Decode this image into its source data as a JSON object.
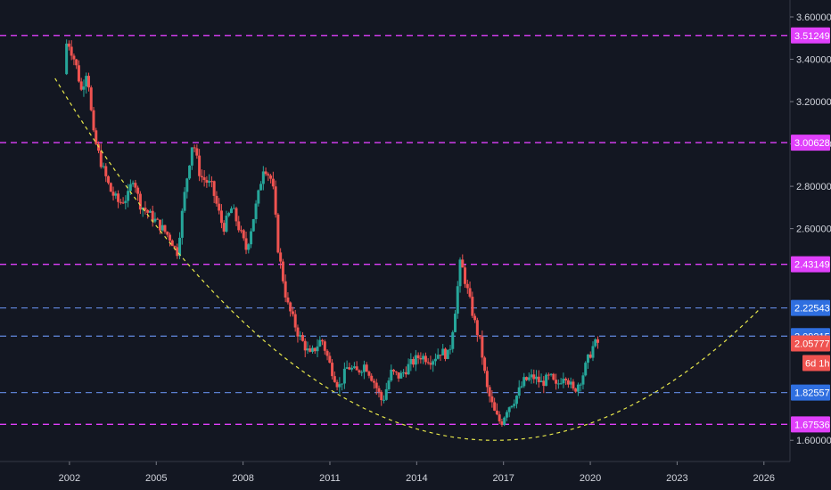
{
  "chart_data": {
    "type": "candlestick",
    "ylim": [
      1.5,
      3.68
    ],
    "xlim": [
      1999.6,
      2026.9
    ],
    "grid": false,
    "colors": {
      "background": "#131722",
      "up": "#26a69a",
      "down": "#ef5350",
      "magenta_line": "#e040fb",
      "blue_line": "#5b7fcf",
      "curve": "#e6e64a",
      "axis_text": "#d1d4dc"
    },
    "y_ticks": [
      "1.60000",
      "2.60000",
      "2.80000",
      "3.00000",
      "3.20000",
      "3.40000",
      "3.60000"
    ],
    "x_ticks": [
      {
        "label": "2002",
        "x": 2002
      },
      {
        "label": "2005",
        "x": 2005
      },
      {
        "label": "2008",
        "x": 2008
      },
      {
        "label": "2011",
        "x": 2011
      },
      {
        "label": "2014",
        "x": 2014
      },
      {
        "label": "2017",
        "x": 2017
      },
      {
        "label": "2020",
        "x": 2020
      },
      {
        "label": "2023",
        "x": 2023
      },
      {
        "label": "2026",
        "x": 2026
      }
    ],
    "horizontal_levels": [
      {
        "label": "3.51249",
        "value": 3.51249,
        "color": "#e040fb",
        "label_bg": "#e040fb"
      },
      {
        "label": "3.00628",
        "value": 3.00628,
        "color": "#e040fb",
        "label_bg": "#e040fb"
      },
      {
        "label": "2.43149",
        "value": 2.43149,
        "color": "#e040fb",
        "label_bg": "#e040fb"
      },
      {
        "label": "2.22543",
        "value": 2.22543,
        "color": "#5b7fcf",
        "label_bg": "#2f6fe0"
      },
      {
        "label": "2.09215",
        "value": 2.09215,
        "color": "#5b7fcf",
        "label_bg": "#2f6fe0"
      },
      {
        "label": "1.82557",
        "value": 1.82557,
        "color": "#5b7fcf",
        "label_bg": "#2f6fe0"
      },
      {
        "label": "1.67536",
        "value": 1.67536,
        "color": "#e040fb",
        "label_bg": "#e040fb"
      }
    ],
    "current_price": {
      "label": "2.05777",
      "value": 2.05777,
      "color": "#ef5350"
    },
    "countdown": {
      "label": "6d 1h",
      "color": "#ef5350"
    },
    "price_path": [
      {
        "x": 2001.9,
        "y": 3.33
      },
      {
        "x": 2002.0,
        "y": 3.5
      },
      {
        "x": 2002.3,
        "y": 3.38
      },
      {
        "x": 2002.5,
        "y": 3.25
      },
      {
        "x": 2002.7,
        "y": 3.36
      },
      {
        "x": 2002.9,
        "y": 3.05
      },
      {
        "x": 2003.2,
        "y": 2.9
      },
      {
        "x": 2003.5,
        "y": 2.78
      },
      {
        "x": 2003.8,
        "y": 2.72
      },
      {
        "x": 2004.1,
        "y": 2.75
      },
      {
        "x": 2004.3,
        "y": 2.85
      },
      {
        "x": 2004.5,
        "y": 2.72
      },
      {
        "x": 2004.9,
        "y": 2.66
      },
      {
        "x": 2005.3,
        "y": 2.6
      },
      {
        "x": 2005.6,
        "y": 2.55
      },
      {
        "x": 2005.8,
        "y": 2.48
      },
      {
        "x": 2006.1,
        "y": 2.8
      },
      {
        "x": 2006.35,
        "y": 3.02
      },
      {
        "x": 2006.6,
        "y": 2.85
      },
      {
        "x": 2007.0,
        "y": 2.8
      },
      {
        "x": 2007.4,
        "y": 2.6
      },
      {
        "x": 2007.7,
        "y": 2.7
      },
      {
        "x": 2007.9,
        "y": 2.62
      },
      {
        "x": 2008.2,
        "y": 2.5
      },
      {
        "x": 2008.6,
        "y": 2.75
      },
      {
        "x": 2008.8,
        "y": 2.9
      },
      {
        "x": 2009.1,
        "y": 2.82
      },
      {
        "x": 2009.3,
        "y": 2.5
      },
      {
        "x": 2009.6,
        "y": 2.25
      },
      {
        "x": 2010.0,
        "y": 2.1
      },
      {
        "x": 2010.4,
        "y": 2.0
      },
      {
        "x": 2010.8,
        "y": 2.08
      },
      {
        "x": 2011.1,
        "y": 1.95
      },
      {
        "x": 2011.4,
        "y": 1.85
      },
      {
        "x": 2011.7,
        "y": 1.95
      },
      {
        "x": 2012.0,
        "y": 1.92
      },
      {
        "x": 2012.3,
        "y": 1.96
      },
      {
        "x": 2012.6,
        "y": 1.88
      },
      {
        "x": 2012.9,
        "y": 1.78
      },
      {
        "x": 2013.2,
        "y": 1.92
      },
      {
        "x": 2013.5,
        "y": 1.9
      },
      {
        "x": 2013.8,
        "y": 1.95
      },
      {
        "x": 2014.2,
        "y": 2.0
      },
      {
        "x": 2014.6,
        "y": 1.98
      },
      {
        "x": 2014.9,
        "y": 2.02
      },
      {
        "x": 2015.2,
        "y": 2.0
      },
      {
        "x": 2015.4,
        "y": 2.2
      },
      {
        "x": 2015.6,
        "y": 2.45
      },
      {
        "x": 2015.85,
        "y": 2.3
      },
      {
        "x": 2016.1,
        "y": 2.15
      },
      {
        "x": 2016.3,
        "y": 2.05
      },
      {
        "x": 2016.5,
        "y": 1.85
      },
      {
        "x": 2016.8,
        "y": 1.72
      },
      {
        "x": 2017.0,
        "y": 1.68
      },
      {
        "x": 2017.2,
        "y": 1.75
      },
      {
        "x": 2017.5,
        "y": 1.8
      },
      {
        "x": 2017.8,
        "y": 1.88
      },
      {
        "x": 2018.1,
        "y": 1.9
      },
      {
        "x": 2018.4,
        "y": 1.87
      },
      {
        "x": 2018.7,
        "y": 1.9
      },
      {
        "x": 2018.9,
        "y": 1.85
      },
      {
        "x": 2019.2,
        "y": 1.92
      },
      {
        "x": 2019.5,
        "y": 1.83
      },
      {
        "x": 2019.8,
        "y": 1.9
      },
      {
        "x": 2020.0,
        "y": 1.98
      },
      {
        "x": 2020.2,
        "y": 2.05
      },
      {
        "x": 2020.3,
        "y": 2.06
      }
    ],
    "parabola": {
      "x_start": 2001.5,
      "x_end": 2025.9,
      "vertex_x": 2016.7,
      "vertex_y": 1.6,
      "start_y": 3.31
    }
  }
}
